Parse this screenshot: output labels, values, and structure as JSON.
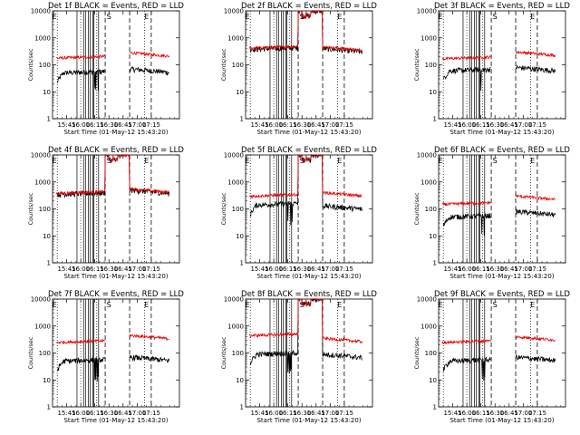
{
  "chart_data": {
    "type": "line",
    "layout": "3x3 grid of panels",
    "x_tick_labels": [
      "15:45",
      "16:00",
      "16:15",
      "16:30",
      "16:45",
      "17:00",
      "17:15"
    ],
    "x_tick_minutes": [
      15,
      30,
      45,
      60,
      75,
      90,
      105
    ],
    "xlim_minutes": [
      0,
      135
    ],
    "xlabel": "Start Time (01-May-12 15:43:20)",
    "ylabel": "Counts/sec",
    "yscale": "log",
    "ylim": [
      1,
      10000
    ],
    "y_tick_labels": [
      "1",
      "10",
      "100",
      "1000",
      "10000"
    ],
    "legend_text": "BLACK = Events, RED = LLD",
    "series_colors": {
      "events": "#000000",
      "lld": "#ee0000"
    },
    "panels": [
      {
        "title": "Det 1f BLACK = Events, RED = LLD",
        "markers": [
          "E",
          "S",
          "E"
        ],
        "ev_level": 50,
        "lld_level": 180,
        "ev_after": 70,
        "lld_after": 280,
        "overlap": false,
        "saturated": false,
        "dips": false
      },
      {
        "title": "Det 2f BLACK = Events, RED = LLD",
        "markers": [
          "E",
          "S",
          "E"
        ],
        "ev_level": 380,
        "lld_level": 420,
        "ev_after": 400,
        "lld_after": 460,
        "overlap": true,
        "saturated": true,
        "dips": true
      },
      {
        "title": "Det 3f BLACK = Events, RED = LLD",
        "markers": [
          "E",
          "S",
          "E"
        ],
        "ev_level": 60,
        "lld_level": 170,
        "ev_after": 80,
        "lld_after": 300,
        "overlap": false,
        "saturated": false,
        "dips": false
      },
      {
        "title": "Det 4f BLACK = Events, RED = LLD",
        "markers": [
          "E",
          "S",
          "E"
        ],
        "ev_level": 350,
        "lld_level": 380,
        "ev_after": 500,
        "lld_after": 550,
        "overlap": true,
        "saturated": true,
        "dips": true
      },
      {
        "title": "Det 5f BLACK = Events, RED = LLD",
        "markers": [
          "E",
          "S",
          "E"
        ],
        "ev_level": 140,
        "lld_level": 300,
        "ev_after": 130,
        "lld_after": 400,
        "overlap": false,
        "saturated": true,
        "dips": true
      },
      {
        "title": "Det 6f BLACK = Events, RED = LLD",
        "markers": [
          "E",
          "S",
          "E"
        ],
        "ev_level": 50,
        "lld_level": 150,
        "ev_after": 80,
        "lld_after": 300,
        "overlap": false,
        "saturated": false,
        "dips": false
      },
      {
        "title": "Det 7f BLACK = Events, RED = LLD",
        "markers": [
          "E",
          "S",
          "E"
        ],
        "ev_level": 50,
        "lld_level": 250,
        "ev_after": 70,
        "lld_after": 450,
        "overlap": false,
        "saturated": false,
        "dips": false
      },
      {
        "title": "Det 8f BLACK = Events, RED = LLD",
        "markers": [
          "E",
          "S",
          "E"
        ],
        "ev_level": 90,
        "lld_level": 450,
        "ev_after": 90,
        "lld_after": 350,
        "overlap": false,
        "saturated": true,
        "dips": true
      },
      {
        "title": "Det 9f BLACK = Events, RED = LLD",
        "markers": [
          "E",
          "S",
          "E"
        ],
        "ev_level": 50,
        "lld_level": 250,
        "ev_after": 70,
        "lld_after": 400,
        "overlap": false,
        "saturated": false,
        "dips": false
      }
    ]
  }
}
